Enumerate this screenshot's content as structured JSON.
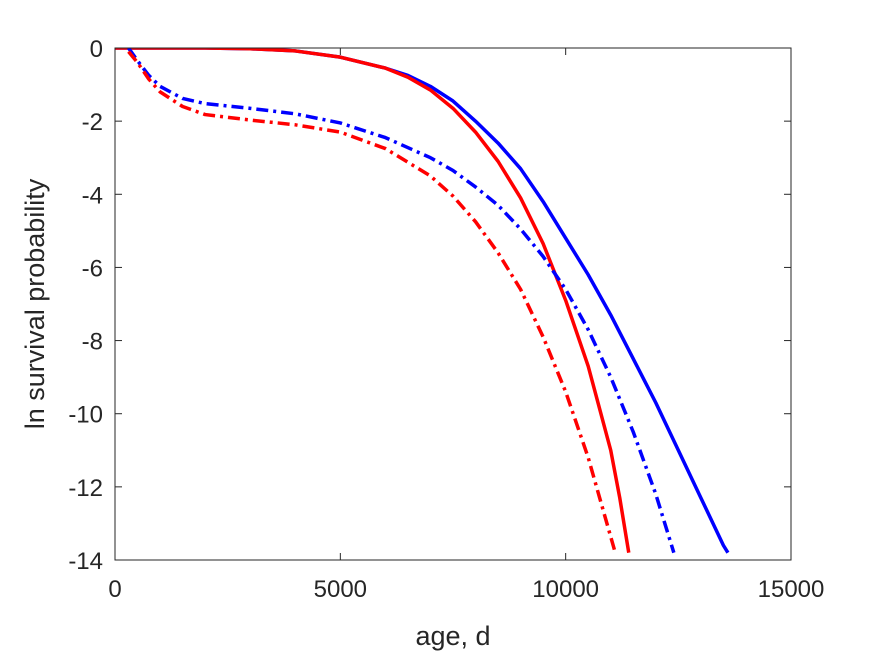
{
  "chart_data": {
    "type": "line",
    "title": "",
    "xlabel": "age, d",
    "ylabel": "ln survival probability",
    "xlim": [
      0,
      15000
    ],
    "ylim": [
      -14,
      0
    ],
    "xticks": [
      0,
      5000,
      10000,
      15000
    ],
    "yticks": [
      0,
      -2,
      -4,
      -6,
      -8,
      -10,
      -12,
      -14
    ],
    "xtick_labels": [
      "0",
      "5000",
      "10000",
      "15000"
    ],
    "ytick_labels": [
      "0",
      "-2",
      "-4",
      "-6",
      "-8",
      "-10",
      "-12",
      "-14"
    ],
    "grid": false,
    "legend": "none",
    "series": [
      {
        "color": "#0000ff",
        "line_style": "solid",
        "x": [
          0,
          1000,
          2000,
          3000,
          4000,
          5000,
          6000,
          6500,
          7000,
          7500,
          8000,
          8500,
          9000,
          9500,
          10000,
          10500,
          11000,
          11500,
          12000,
          12500,
          13000,
          13500,
          13600
        ],
        "y": [
          0,
          0,
          0,
          -0.02,
          -0.08,
          -0.25,
          -0.55,
          -0.75,
          -1.05,
          -1.45,
          -2.0,
          -2.6,
          -3.3,
          -4.2,
          -5.2,
          -6.2,
          -7.3,
          -8.5,
          -9.7,
          -11.0,
          -12.3,
          -13.6,
          -13.8
        ]
      },
      {
        "color": "#ff0000",
        "line_style": "solid",
        "x": [
          0,
          1000,
          2000,
          3000,
          4000,
          5000,
          6000,
          6500,
          7000,
          7500,
          8000,
          8500,
          9000,
          9500,
          10000,
          10500,
          11000,
          11200,
          11400
        ],
        "y": [
          0,
          0,
          0,
          -0.02,
          -0.08,
          -0.25,
          -0.55,
          -0.8,
          -1.15,
          -1.65,
          -2.3,
          -3.1,
          -4.1,
          -5.35,
          -6.9,
          -8.7,
          -11.0,
          -12.3,
          -13.8
        ]
      },
      {
        "color": "#0000ff",
        "line_style": "dash-dot",
        "x": [
          300,
          500,
          750,
          1000,
          1500,
          2000,
          3000,
          4000,
          5000,
          6000,
          7000,
          7500,
          8000,
          8500,
          9000,
          9500,
          10000,
          10500,
          11000,
          11500,
          12000,
          12400
        ],
        "y": [
          0,
          -0.35,
          -0.75,
          -1.05,
          -1.38,
          -1.52,
          -1.65,
          -1.8,
          -2.05,
          -2.45,
          -3.0,
          -3.35,
          -3.8,
          -4.3,
          -4.95,
          -5.7,
          -6.6,
          -7.7,
          -9.0,
          -10.5,
          -12.2,
          -13.8
        ]
      },
      {
        "color": "#ff0000",
        "line_style": "dash-dot",
        "x": [
          300,
          500,
          750,
          1000,
          1500,
          2000,
          3000,
          4000,
          5000,
          6000,
          7000,
          7500,
          8000,
          8500,
          9000,
          9500,
          10000,
          10500,
          10800,
          11100
        ],
        "y": [
          -0.1,
          -0.4,
          -0.85,
          -1.2,
          -1.6,
          -1.82,
          -1.97,
          -2.1,
          -2.3,
          -2.75,
          -3.5,
          -4.05,
          -4.75,
          -5.6,
          -6.6,
          -7.9,
          -9.4,
          -11.2,
          -12.5,
          -13.8
        ]
      }
    ]
  }
}
